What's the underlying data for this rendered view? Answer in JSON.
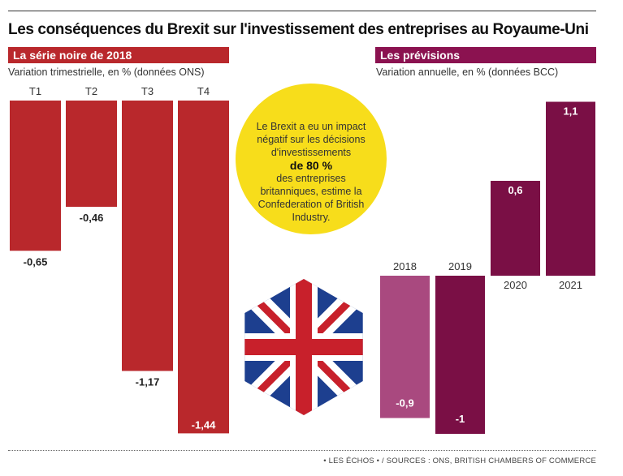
{
  "title": "Les conséquences du Brexit sur l'investissement des entreprises au Royaume-Uni",
  "left_panel": {
    "header": "La série noire de 2018",
    "subtitle": "Variation trimestrielle, en % (données ONS)"
  },
  "right_panel": {
    "header": "Les prévisions",
    "subtitle": "Variation annuelle, en % (données BCC)"
  },
  "callout": {
    "line1": "Le Brexit a eu un impact négatif sur les décisions d'investissements",
    "highlight": "de 80 %",
    "line2": "des entreprises britanniques, estime la Confederation of British Industry."
  },
  "source": "• LES ÉCHOS • / SOURCES : ONS, BRITISH CHAMBERS OF COMMERCE",
  "colors": {
    "quarterly_bar": "#b9282c",
    "forecast_2018": "#a9497f",
    "forecast_bar": "#7a0f45",
    "callout_bg": "#f7dd1b"
  },
  "chart_data": [
    {
      "type": "bar",
      "title": "La série noire de 2018",
      "categories": [
        "T1",
        "T2",
        "T3",
        "T4"
      ],
      "values": [
        -0.65,
        -0.46,
        -1.17,
        -1.44
      ],
      "value_labels": [
        "-0,65",
        "-0,46",
        "-1,17",
        "-1,44"
      ],
      "ylabel": "Variation trimestrielle, en % (données ONS)"
    },
    {
      "type": "bar",
      "title": "Les prévisions",
      "categories": [
        "2018",
        "2019",
        "2020",
        "2021"
      ],
      "values": [
        -0.9,
        -1,
        0.6,
        1.1
      ],
      "value_labels": [
        "-0,9",
        "-1",
        "0,6",
        "1,1"
      ],
      "ylabel": "Variation annuelle, en % (données BCC)"
    }
  ]
}
